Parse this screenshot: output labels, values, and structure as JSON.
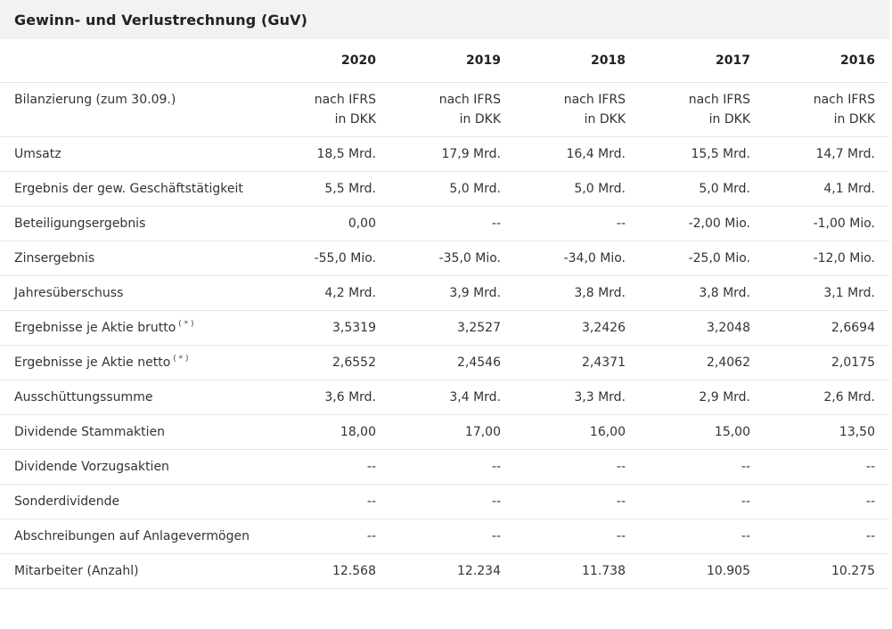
{
  "header": {
    "title": "Gewinn- und Verlustrechnung (GuV)"
  },
  "table": {
    "years": [
      "2020",
      "2019",
      "2018",
      "2017",
      "2016"
    ],
    "rows": [
      {
        "label": "Bilanzierung (zum 30.09.)",
        "footnote": "",
        "values": [
          [
            "nach IFRS",
            "in DKK"
          ],
          [
            "nach IFRS",
            "in DKK"
          ],
          [
            "nach IFRS",
            "in DKK"
          ],
          [
            "nach IFRS",
            "in DKK"
          ],
          [
            "nach IFRS",
            "in DKK"
          ]
        ]
      },
      {
        "label": "Umsatz",
        "footnote": "",
        "values": [
          "18,5 Mrd.",
          "17,9 Mrd.",
          "16,4 Mrd.",
          "15,5 Mrd.",
          "14,7 Mrd."
        ]
      },
      {
        "label": "Ergebnis der gew. Geschäftstätigkeit",
        "footnote": "",
        "values": [
          "5,5 Mrd.",
          "5,0 Mrd.",
          "5,0 Mrd.",
          "5,0 Mrd.",
          "4,1 Mrd."
        ]
      },
      {
        "label": "Beteiligungsergebnis",
        "footnote": "",
        "values": [
          "0,00",
          "--",
          "--",
          "-2,00 Mio.",
          "-1,00 Mio."
        ]
      },
      {
        "label": "Zinsergebnis",
        "footnote": "",
        "values": [
          "-55,0 Mio.",
          "-35,0 Mio.",
          "-34,0 Mio.",
          "-25,0 Mio.",
          "-12,0 Mio."
        ]
      },
      {
        "label": "Jahresüberschuss",
        "footnote": "",
        "values": [
          "4,2 Mrd.",
          "3,9 Mrd.",
          "3,8 Mrd.",
          "3,8 Mrd.",
          "3,1 Mrd."
        ]
      },
      {
        "label": "Ergebnisse je Aktie brutto",
        "footnote": "( * )",
        "values": [
          "3,5319",
          "3,2527",
          "3,2426",
          "3,2048",
          "2,6694"
        ]
      },
      {
        "label": "Ergebnisse je Aktie netto",
        "footnote": "( * )",
        "values": [
          "2,6552",
          "2,4546",
          "2,4371",
          "2,4062",
          "2,0175"
        ]
      },
      {
        "label": "Ausschüttungssumme",
        "footnote": "",
        "values": [
          "3,6 Mrd.",
          "3,4 Mrd.",
          "3,3 Mrd.",
          "2,9 Mrd.",
          "2,6 Mrd."
        ]
      },
      {
        "label": "Dividende Stammaktien",
        "footnote": "",
        "values": [
          "18,00",
          "17,00",
          "16,00",
          "15,00",
          "13,50"
        ]
      },
      {
        "label": "Dividende Vorzugsaktien",
        "footnote": "",
        "values": [
          "--",
          "--",
          "--",
          "--",
          "--"
        ]
      },
      {
        "label": "Sonderdividende",
        "footnote": "",
        "values": [
          "--",
          "--",
          "--",
          "--",
          "--"
        ]
      },
      {
        "label": "Abschreibungen auf Anlagevermögen",
        "footnote": "",
        "values": [
          "--",
          "--",
          "--",
          "--",
          "--"
        ]
      },
      {
        "label": "Mitarbeiter (Anzahl)",
        "footnote": "",
        "values": [
          "12.568",
          "12.234",
          "11.738",
          "10.905",
          "10.275"
        ]
      }
    ]
  }
}
